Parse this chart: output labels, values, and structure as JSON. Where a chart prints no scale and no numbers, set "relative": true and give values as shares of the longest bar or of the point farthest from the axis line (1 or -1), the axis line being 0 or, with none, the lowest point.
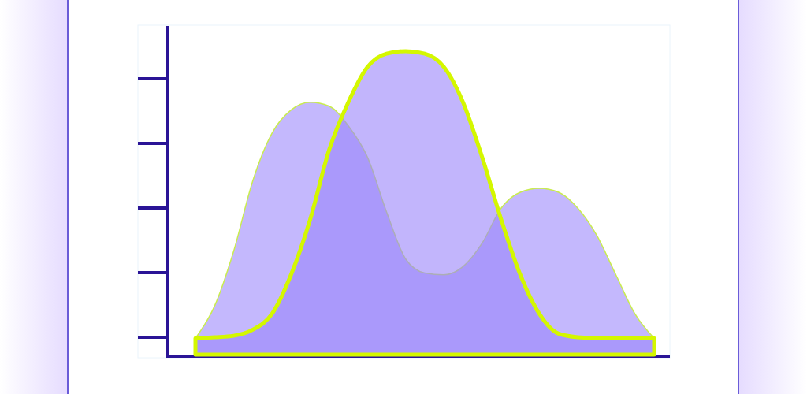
{
  "chart_data": {
    "type": "area",
    "relative": true,
    "categories": [
      null,
      null,
      null,
      null,
      null,
      null,
      null,
      null,
      null,
      null,
      null,
      null,
      null,
      null,
      null,
      null,
      null,
      null,
      null,
      null,
      null,
      null,
      null,
      null,
      null
    ],
    "series": [
      {
        "color": "#c4b8fd",
        "values": [
          0.054,
          0.16,
          0.341,
          0.573,
          0.729,
          0.806,
          0.832,
          0.819,
          0.754,
          0.651,
          0.47,
          0.315,
          0.269,
          0.263,
          0.29,
          0.367,
          0.483,
          0.535,
          0.548,
          0.535,
          0.483,
          0.393,
          0.263,
          0.134,
          0.054
        ]
      },
      {
        "color": "#9a84fa",
        "values": [
          0.054,
          0.057,
          0.062,
          0.082,
          0.134,
          0.263,
          0.445,
          0.676,
          0.832,
          0.948,
          0.992,
          1,
          0.992,
          0.948,
          0.832,
          0.651,
          0.445,
          0.263,
          0.134,
          0.069,
          0.057,
          0.054,
          0.054,
          0.054,
          0.054
        ]
      }
    ]
  }
}
